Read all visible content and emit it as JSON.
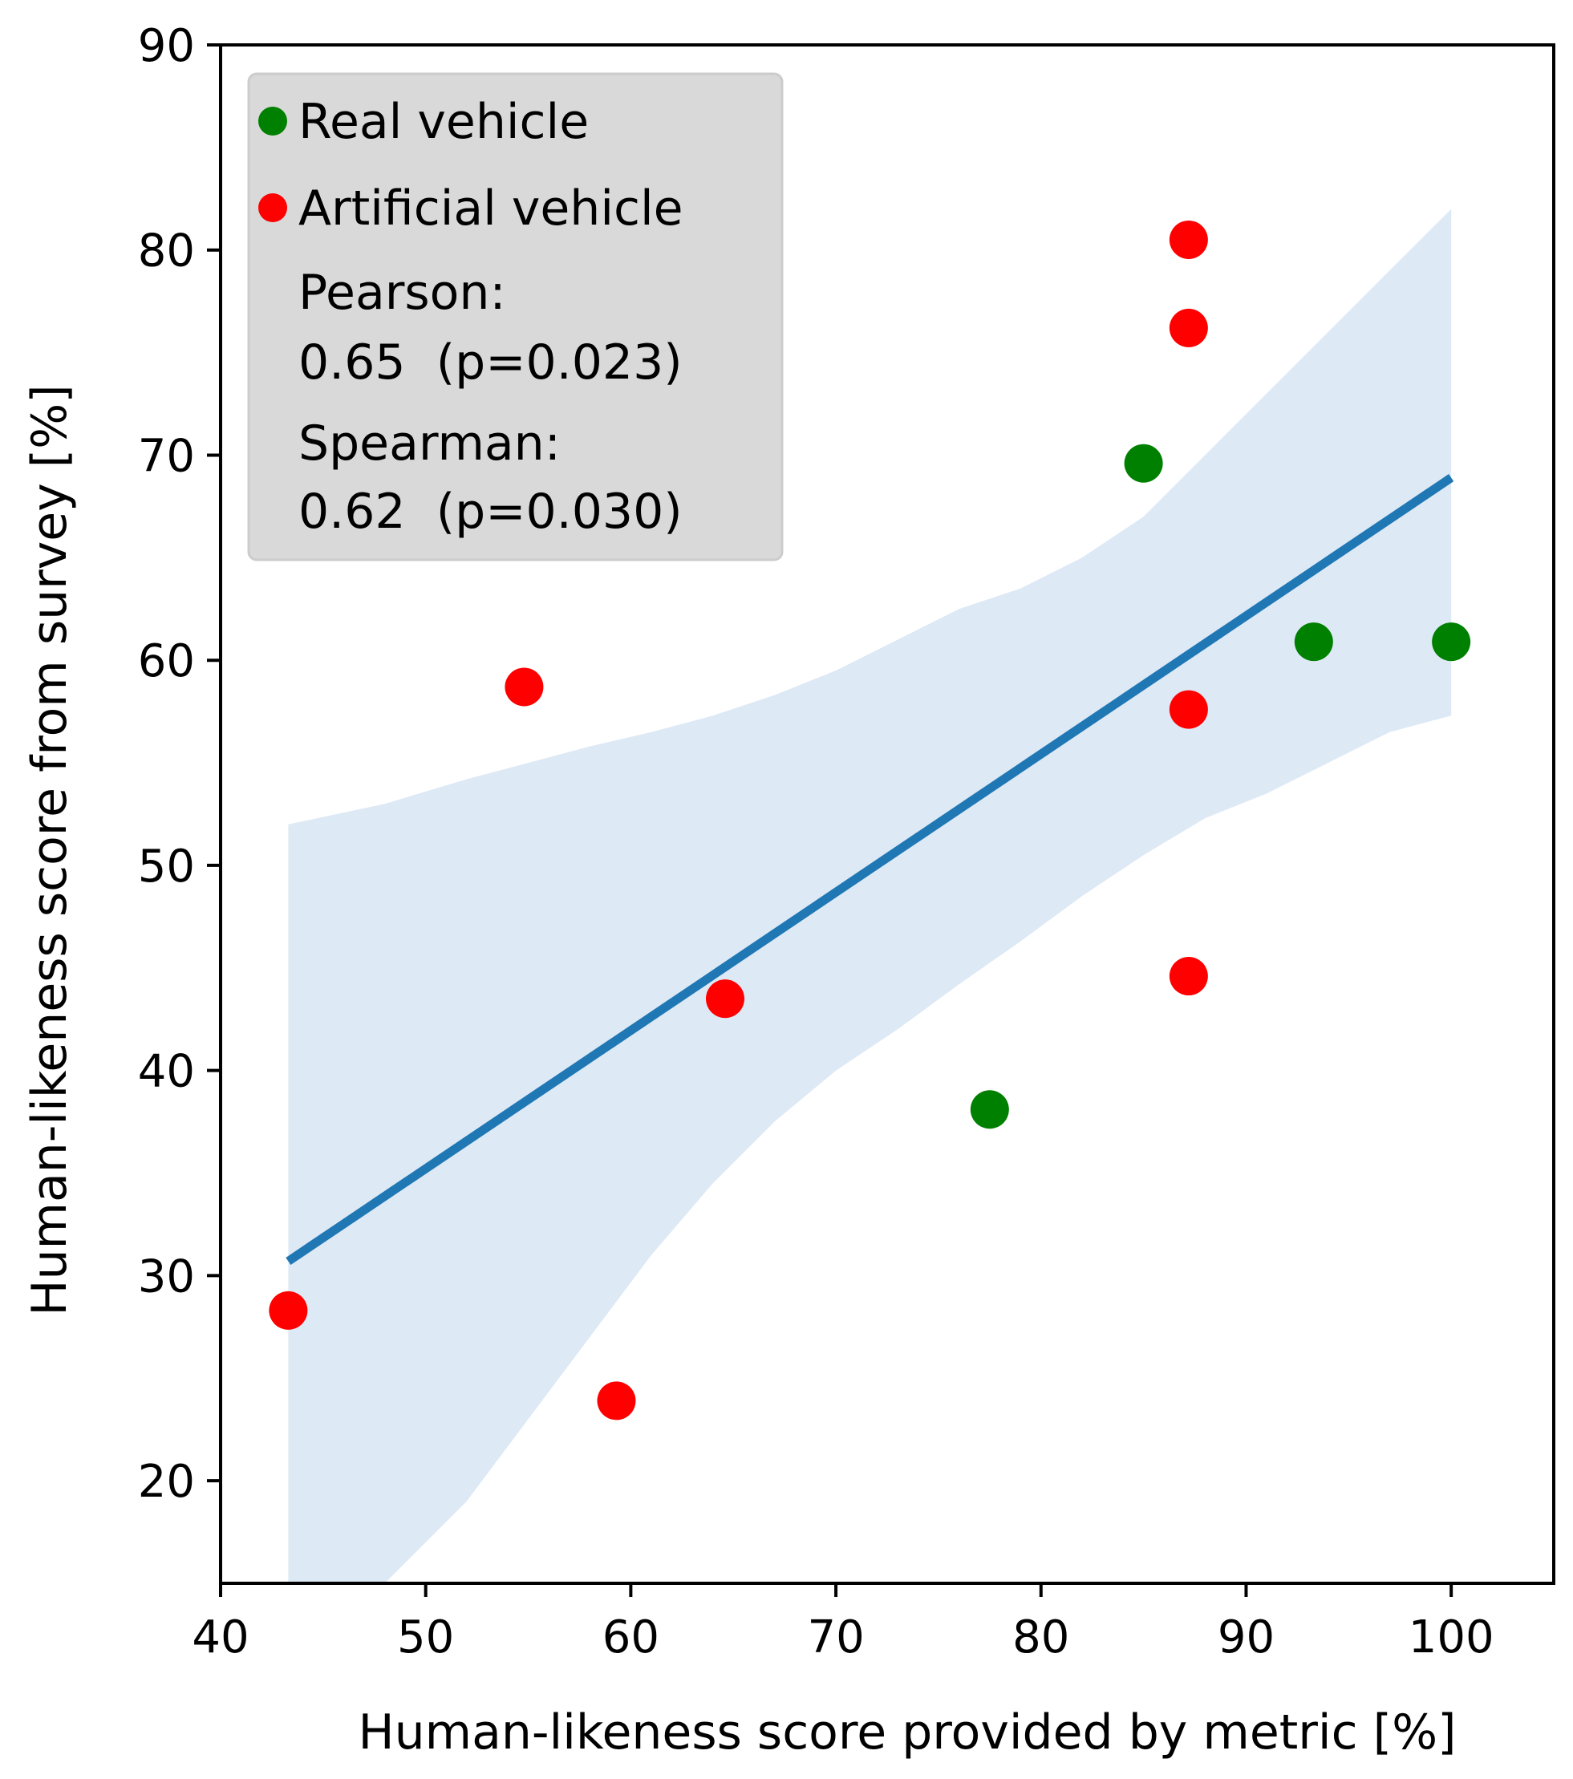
{
  "chart_data": {
    "type": "scatter",
    "title": "",
    "xlabel": "Human-likeness score provided by metric [%]",
    "ylabel": "Human-likeness score from survey [%]",
    "xlim": [
      40,
      105
    ],
    "ylim": [
      15,
      90
    ],
    "xticks": [
      40,
      50,
      60,
      70,
      80,
      90,
      100
    ],
    "yticks": [
      20,
      30,
      40,
      50,
      60,
      70,
      80,
      90
    ],
    "grid": false,
    "legend_position": "top-left",
    "colors": {
      "real": "#008000",
      "artificial": "#ff0000",
      "regression": "#1f77b4",
      "band": "#dde9f5",
      "legend_bg": "#d9d9d9"
    },
    "series": [
      {
        "name": "Real vehicle",
        "color": "#008000",
        "points": [
          [
            85.0,
            69.6
          ],
          [
            77.5,
            38.1
          ],
          [
            93.3,
            60.9
          ],
          [
            100.0,
            60.9
          ]
        ]
      },
      {
        "name": "Artificial vehicle",
        "color": "#ff0000",
        "points": [
          [
            87.2,
            80.5
          ],
          [
            87.2,
            76.2
          ],
          [
            87.2,
            57.6
          ],
          [
            87.2,
            44.6
          ],
          [
            54.8,
            58.7
          ],
          [
            64.6,
            43.5
          ],
          [
            43.3,
            28.3
          ],
          [
            59.3,
            23.9
          ]
        ]
      }
    ],
    "regression": {
      "x": [
        43.3,
        100.0
      ],
      "y": [
        30.7,
        68.9
      ],
      "ci_band": [
        {
          "x": 43.3,
          "lo": 15.0,
          "hi": 52.0
        },
        {
          "x": 48.0,
          "lo": 15.0,
          "hi": 53.0
        },
        {
          "x": 52.0,
          "lo": 19.0,
          "hi": 54.2
        },
        {
          "x": 55.0,
          "lo": 23.0,
          "hi": 55.0
        },
        {
          "x": 58.0,
          "lo": 27.0,
          "hi": 55.8
        },
        {
          "x": 61.0,
          "lo": 31.0,
          "hi": 56.5
        },
        {
          "x": 64.0,
          "lo": 34.5,
          "hi": 57.3
        },
        {
          "x": 67.0,
          "lo": 37.5,
          "hi": 58.3
        },
        {
          "x": 70.0,
          "lo": 40.0,
          "hi": 59.5
        },
        {
          "x": 73.0,
          "lo": 42.0,
          "hi": 61.0
        },
        {
          "x": 76.0,
          "lo": 44.2,
          "hi": 62.5
        },
        {
          "x": 79.0,
          "lo": 46.3,
          "hi": 63.5
        },
        {
          "x": 82.0,
          "lo": 48.5,
          "hi": 65.0
        },
        {
          "x": 85.0,
          "lo": 50.5,
          "hi": 67.0
        },
        {
          "x": 88.0,
          "lo": 52.3,
          "hi": 70.0
        },
        {
          "x": 91.0,
          "lo": 53.5,
          "hi": 73.0
        },
        {
          "x": 94.0,
          "lo": 55.0,
          "hi": 76.0
        },
        {
          "x": 97.0,
          "lo": 56.5,
          "hi": 79.0
        },
        {
          "x": 100.0,
          "lo": 57.3,
          "hi": 82.0
        }
      ]
    },
    "annotations": {
      "pearson_label": "Pearson:",
      "pearson_value": "0.65  (p=0.023)",
      "spearman_label": "Spearman:",
      "spearman_value": "0.62  (p=0.030)"
    }
  }
}
